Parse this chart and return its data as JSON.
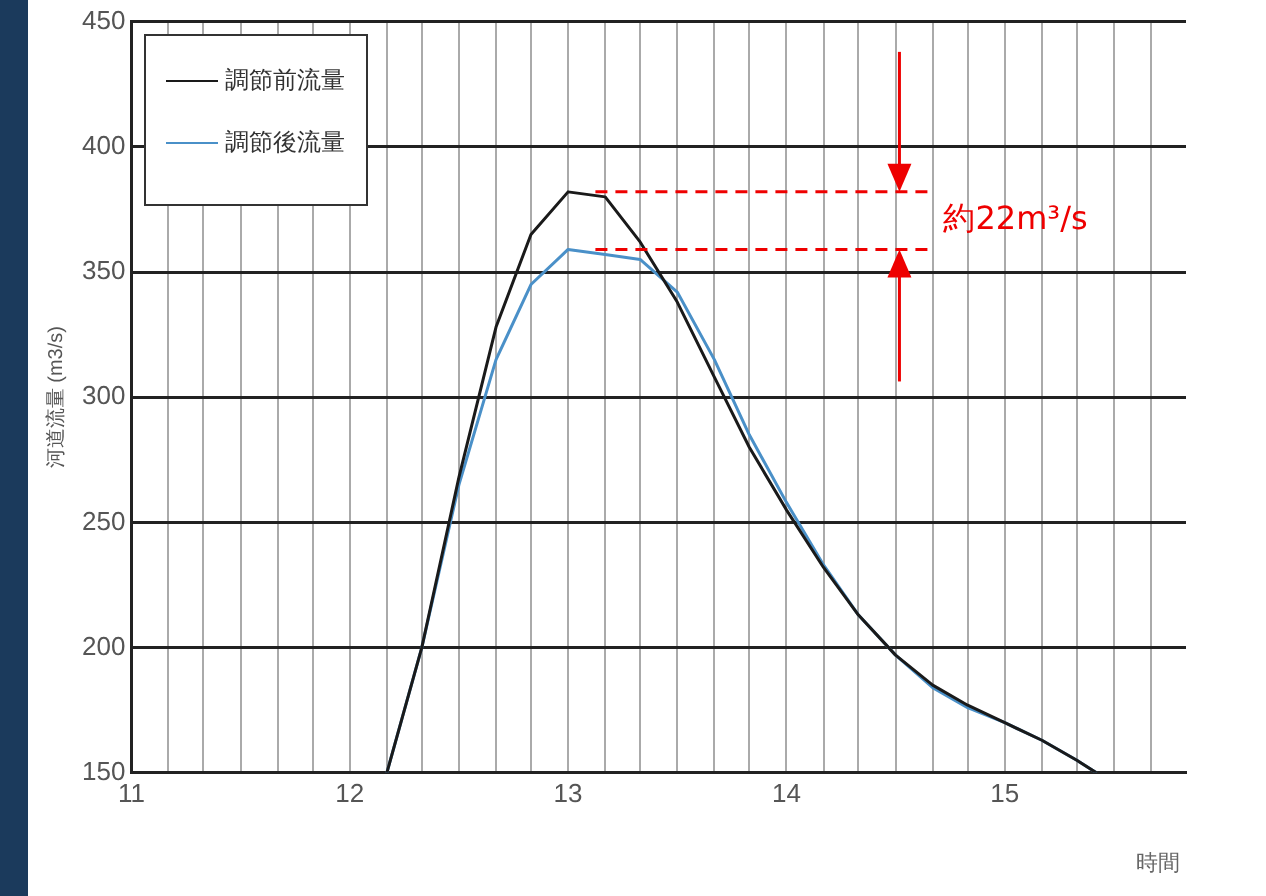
{
  "chart_data": {
    "type": "line",
    "xlabel": "時間",
    "ylabel": "河道流量 (m3/s)",
    "xlim": [
      11,
      15.83
    ],
    "ylim": [
      150,
      450
    ],
    "xticks": [
      11,
      {
        "value": 11.17,
        "label": null
      },
      {
        "value": 11.33,
        "label": null
      },
      {
        "value": 11.5,
        "label": null
      },
      {
        "value": 11.67,
        "label": null
      },
      {
        "value": 11.83,
        "label": null
      },
      12,
      {
        "value": 12.17,
        "label": null
      },
      {
        "value": 12.33,
        "label": null
      },
      {
        "value": 12.5,
        "label": null
      },
      {
        "value": 12.67,
        "label": null
      },
      {
        "value": 12.83,
        "label": null
      },
      13,
      {
        "value": 13.17,
        "label": null
      },
      {
        "value": 13.33,
        "label": null
      },
      {
        "value": 13.5,
        "label": null
      },
      {
        "value": 13.67,
        "label": null
      },
      {
        "value": 13.83,
        "label": null
      },
      14,
      {
        "value": 14.17,
        "label": null
      },
      {
        "value": 14.33,
        "label": null
      },
      {
        "value": 14.5,
        "label": null
      },
      {
        "value": 14.67,
        "label": null
      },
      {
        "value": 14.83,
        "label": null
      },
      15,
      {
        "value": 15.17,
        "label": null
      },
      {
        "value": 15.33,
        "label": null
      },
      {
        "value": 15.5,
        "label": null
      },
      {
        "value": 15.67,
        "label": null
      }
    ],
    "yticks": [
      150,
      200,
      250,
      300,
      350,
      400,
      450
    ],
    "x": [
      12.17,
      12.33,
      12.5,
      12.67,
      12.83,
      13,
      13.17,
      13.33,
      13.5,
      13.67,
      13.83,
      14,
      14.17,
      14.33,
      14.5,
      14.67,
      14.83,
      15,
      15.17,
      15.33,
      15.42
    ],
    "series": [
      {
        "name": "調節前流量",
        "color": "#1a1a1a",
        "values": [
          150,
          200,
          268,
          328,
          365,
          382,
          380,
          362,
          338,
          308,
          280,
          255,
          232,
          213,
          197,
          185,
          177,
          170,
          163,
          155,
          150
        ]
      },
      {
        "name": "調節後流量",
        "color": "#4a90c8",
        "values": [
          150,
          200,
          265,
          315,
          345,
          359,
          357,
          355,
          342,
          315,
          285,
          258,
          233,
          213,
          197,
          184,
          176,
          170,
          163,
          155,
          150
        ]
      }
    ],
    "annotations": [
      "約22m³/s"
    ],
    "ref_lines": [
      {
        "axis": "y",
        "value": 382,
        "color": "#ee0000",
        "line_style": "dashed"
      },
      {
        "axis": "y",
        "value": 359,
        "color": "#ee0000",
        "line_style": "dashed"
      }
    ],
    "grid": true,
    "legend": "top left",
    "marker": "none",
    "line_style": "solid"
  }
}
